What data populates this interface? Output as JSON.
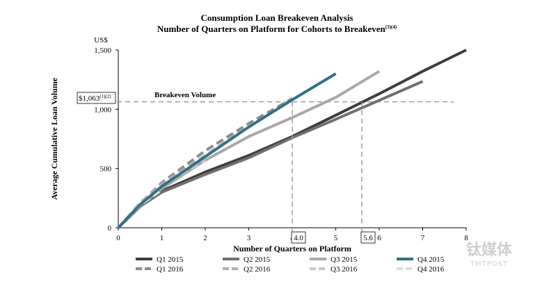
{
  "chart_data": {
    "type": "line",
    "title": "Consumption Loan Breakeven Analysis",
    "subtitle": "Number of Quarters on Platform for Cohorts to Breakeven",
    "subtitle_sup": "(3)(4)",
    "xlabel": "Number of Quarters on Platform",
    "ylabel": "Average Cumulative Loan Volume",
    "y_unit": "US$",
    "xlim": [
      0,
      8
    ],
    "ylim": [
      0,
      1500
    ],
    "x_ticks": [
      "0",
      "1",
      "2",
      "3",
      "4",
      "5",
      "6",
      "7",
      "8"
    ],
    "y_ticks": [
      "0",
      "500",
      "1,000",
      "1,500"
    ],
    "grid": false,
    "legend_position": "bottom",
    "breakeven": {
      "label": "Breakeven Volume",
      "value": 1063,
      "value_label": "$1,063",
      "value_sup": "(1)(2)",
      "markers": [
        {
          "x": 4.0,
          "label": "4.0"
        },
        {
          "x": 5.6,
          "label": "5.6"
        }
      ]
    },
    "series": [
      {
        "name": "Q1 2015",
        "style": "solid",
        "color": "#3d3d3d",
        "x": [
          0,
          0.5,
          1,
          2,
          3,
          4,
          5,
          6,
          7,
          8
        ],
        "y": [
          0,
          180,
          310,
          470,
          610,
          770,
          950,
          1130,
          1320,
          1500
        ]
      },
      {
        "name": "Q2 2015",
        "style": "solid",
        "color": "#707070",
        "x": [
          0,
          0.5,
          1,
          2,
          3,
          4,
          5,
          6,
          7
        ],
        "y": [
          0,
          180,
          300,
          450,
          590,
          760,
          915,
          1075,
          1235
        ]
      },
      {
        "name": "Q3 2015",
        "style": "solid",
        "color": "#a8a8a8",
        "x": [
          0,
          0.5,
          1,
          2,
          3,
          4,
          5,
          6
        ],
        "y": [
          0,
          190,
          330,
          570,
          770,
          930,
          1100,
          1320
        ]
      },
      {
        "name": "Q4 2015",
        "style": "solid",
        "color": "#336f87",
        "x": [
          0,
          0.5,
          1,
          2,
          3,
          4,
          5
        ],
        "y": [
          0,
          195,
          350,
          600,
          850,
          1080,
          1300
        ]
      },
      {
        "name": "Q1 2016",
        "style": "dashed",
        "color": "#8c8c8c",
        "x": [
          0,
          0.5,
          1,
          2,
          3,
          4
        ],
        "y": [
          0,
          205,
          380,
          650,
          880,
          1090
        ]
      },
      {
        "name": "Q2 2016",
        "style": "dashed",
        "color": "#b0b0b0",
        "x": [
          0,
          0.5,
          1,
          2,
          3
        ],
        "y": [
          0,
          210,
          370,
          610,
          860
        ]
      },
      {
        "name": "Q3 2016",
        "style": "dashed",
        "color": "#c6c6c6",
        "x": [
          0,
          0.5,
          1,
          2
        ],
        "y": [
          0,
          200,
          355,
          570
        ]
      },
      {
        "name": "Q4 2016",
        "style": "dashed",
        "color": "#dcdcdc",
        "x": [
          0,
          0.5,
          1
        ],
        "y": [
          0,
          190,
          320
        ]
      }
    ]
  },
  "watermark": {
    "cn": "钛媒体",
    "en": "TMTPOST"
  }
}
